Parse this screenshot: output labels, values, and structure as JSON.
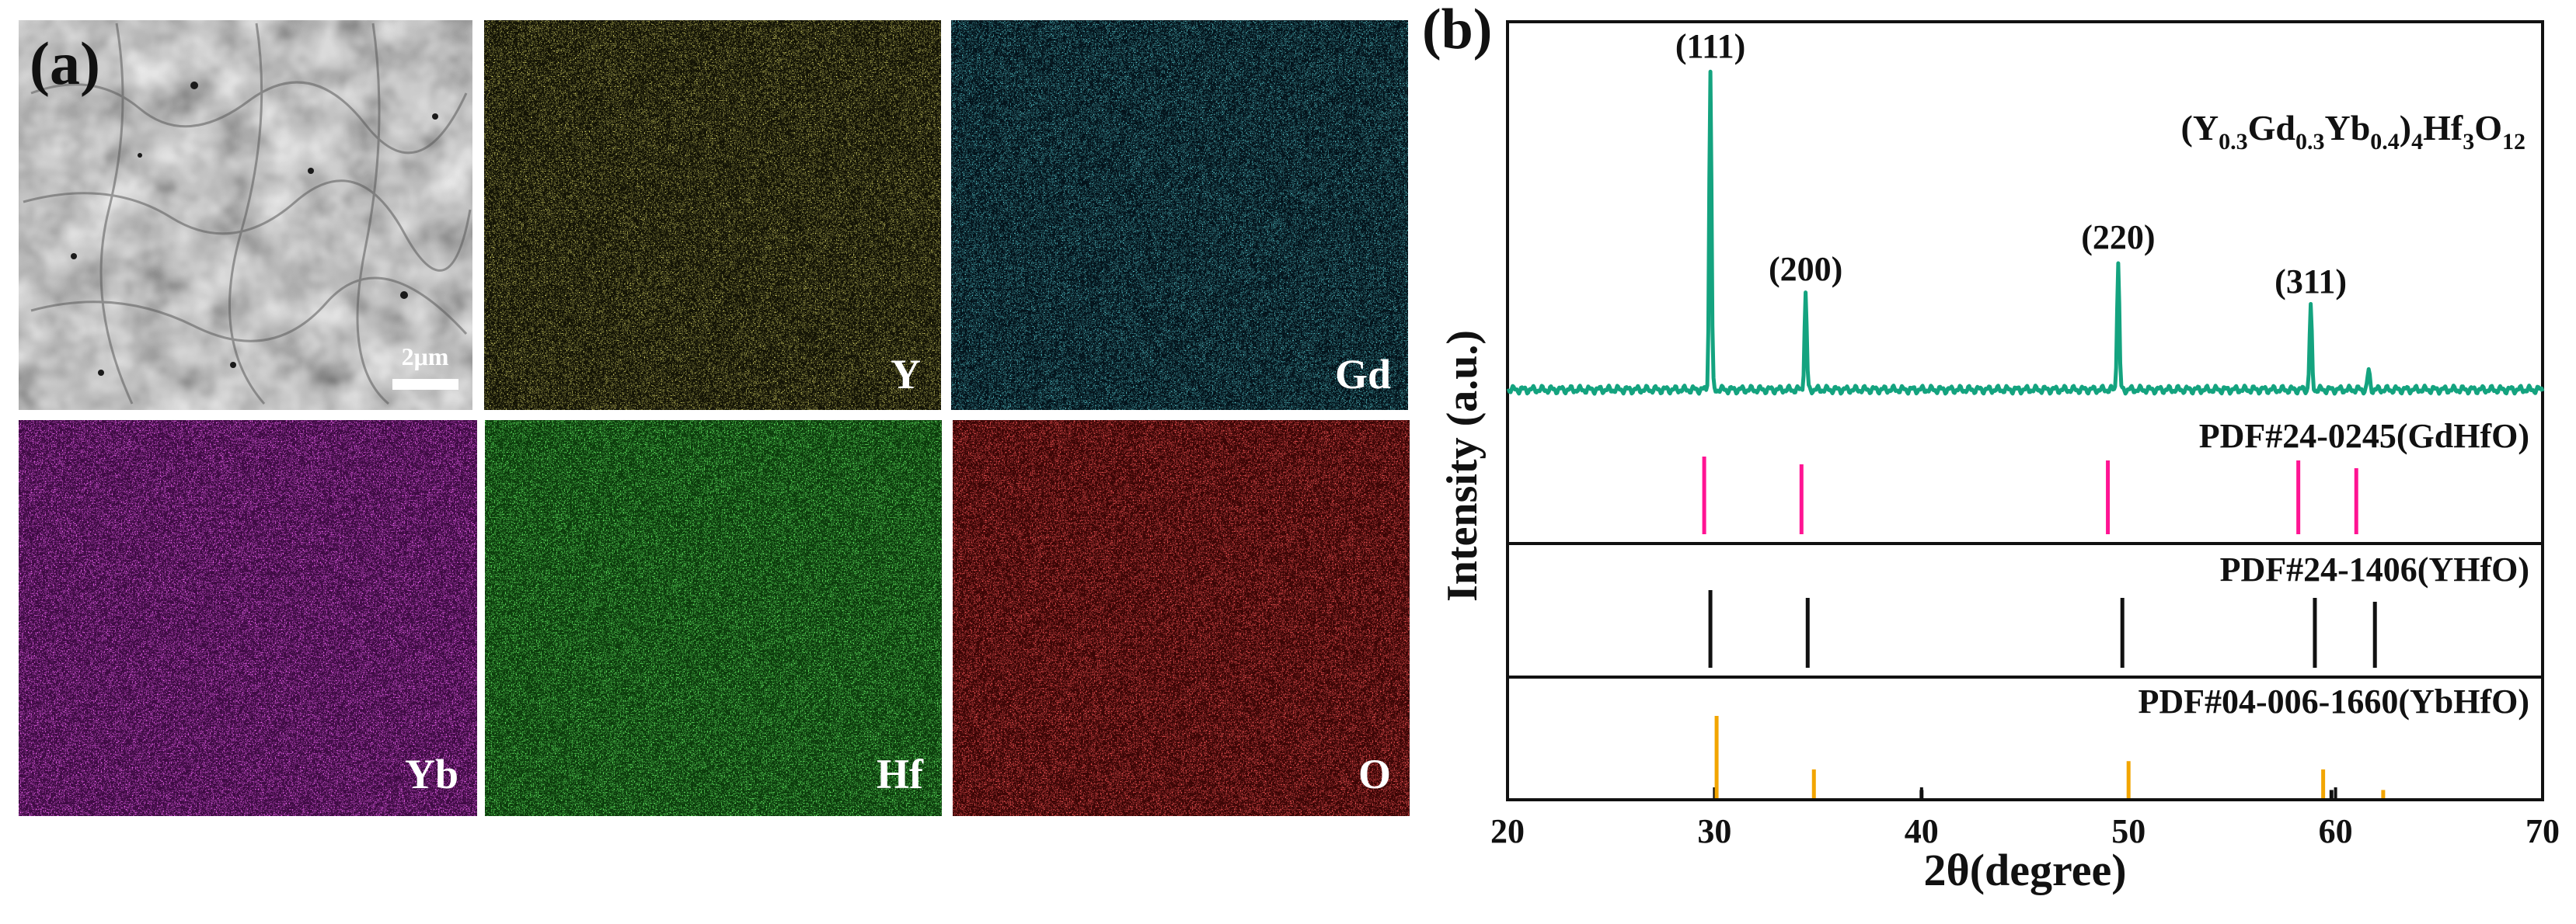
{
  "panel_a": {
    "label": "(a)",
    "scale_bar_text": "2μm",
    "maps": [
      {
        "element": "Y",
        "color": "#d8d02a"
      },
      {
        "element": "Gd",
        "color": "#22c4d0"
      },
      {
        "element": "Yb",
        "color": "#d21ed8"
      },
      {
        "element": "Hf",
        "color": "#1fc81f"
      },
      {
        "element": "O",
        "color": "#e01616"
      }
    ]
  },
  "chart_data": {
    "type": "line",
    "panel_label": "(b)",
    "xlabel": "2θ(degree)",
    "ylabel": "Intensity (a.u.)",
    "xlim": [
      20,
      70
    ],
    "xticks": [
      20,
      30,
      40,
      50,
      60,
      70
    ],
    "sample": {
      "name_parts": {
        "open": "(Y",
        "s1": "0.3",
        "gd": "Gd",
        "s2": "0.3",
        "yb": "Yb",
        "s3": "0.4",
        "close": ")",
        "s4": "4",
        "hf": "Hf",
        "s5": "3",
        "o": "O",
        "s6": "12"
      },
      "color": "#14a37f",
      "baseline": 2,
      "peaks": [
        {
          "x": 29.8,
          "height": 100,
          "hkl": "(111)"
        },
        {
          "x": 34.4,
          "height": 30,
          "hkl": "(200)"
        },
        {
          "x": 49.5,
          "height": 40,
          "hkl": "(220)"
        },
        {
          "x": 58.8,
          "height": 26,
          "hkl": "(311)"
        },
        {
          "x": 61.6,
          "height": 6,
          "hkl": ""
        }
      ]
    },
    "references": [
      {
        "label": "PDF#24-0245(GdHfO)",
        "color": "#ff1493",
        "peaks": [
          {
            "x": 29.5,
            "h": 1.0
          },
          {
            "x": 34.2,
            "h": 0.9
          },
          {
            "x": 49.0,
            "h": 0.95
          },
          {
            "x": 58.2,
            "h": 0.95
          },
          {
            "x": 61.0,
            "h": 0.85
          }
        ]
      },
      {
        "label": "PDF#24-1406(YHfO)",
        "color": "#111111",
        "peaks": [
          {
            "x": 29.8,
            "h": 1.0
          },
          {
            "x": 34.5,
            "h": 0.9
          },
          {
            "x": 49.7,
            "h": 0.9
          },
          {
            "x": 59.0,
            "h": 0.9
          },
          {
            "x": 61.9,
            "h": 0.85
          }
        ]
      },
      {
        "label": "PDF#04-006-1660(YbHfO)",
        "color": "#f2a500",
        "peaks": [
          {
            "x": 30.1,
            "h": 1.0
          },
          {
            "x": 34.8,
            "h": 0.35
          },
          {
            "x": 40.0,
            "h": 0.1,
            "color": "#111111"
          },
          {
            "x": 50.0,
            "h": 0.45
          },
          {
            "x": 59.4,
            "h": 0.35
          },
          {
            "x": 59.8,
            "h": 0.1,
            "color": "#111111"
          },
          {
            "x": 62.3,
            "h": 0.1
          }
        ]
      }
    ]
  }
}
